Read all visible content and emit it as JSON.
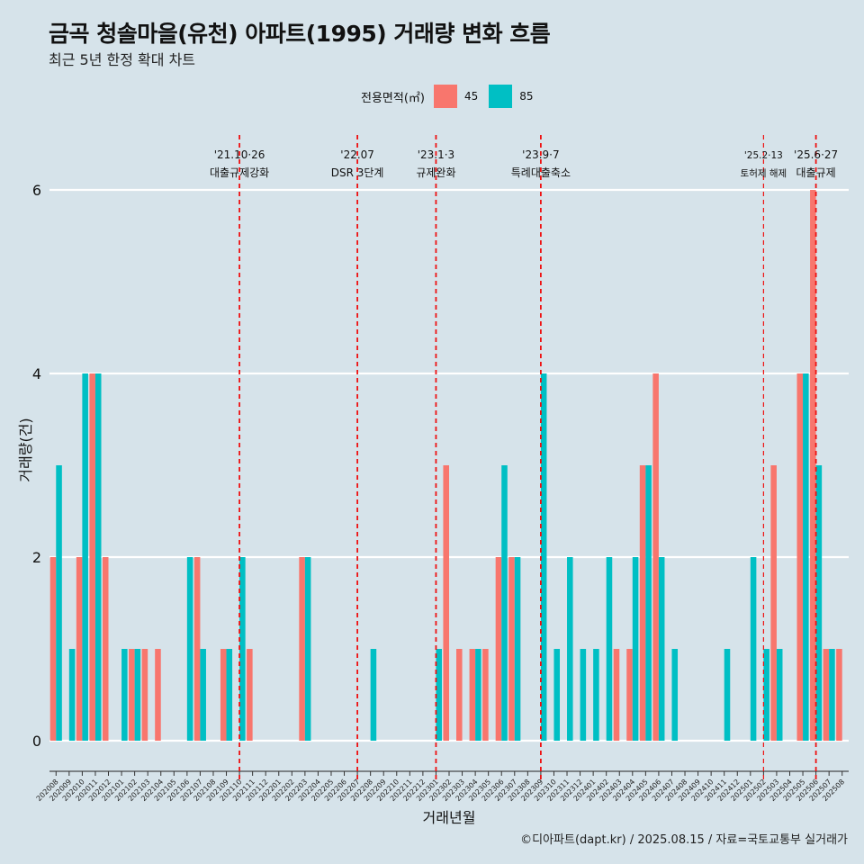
{
  "title": "금곡 청솔마을(유천) 아파트(1995) 거래량 변화 흐름",
  "subtitle": "최근 5년 한정 확대 차트",
  "legend": {
    "title": "전용면적(㎡)",
    "items": [
      {
        "label": "45",
        "color": "#f8766d"
      },
      {
        "label": "85",
        "color": "#00bfc4"
      }
    ]
  },
  "caption": "©디아파트(dapt.kr) / 2025.08.15 / 자료=국토교통부 실거래가",
  "chart_data": {
    "type": "bar",
    "xlabel": "거래년월",
    "ylabel": "거래량(건)",
    "ylim": [
      -0.3,
      6.1
    ],
    "yticks": [
      0,
      2,
      4,
      6
    ],
    "grid": true,
    "legend_position": "top",
    "categories": [
      "202008",
      "202009",
      "202010",
      "202011",
      "202012",
      "202101",
      "202102",
      "202103",
      "202104",
      "202105",
      "202106",
      "202107",
      "202108",
      "202109",
      "202110",
      "202111",
      "202112",
      "202201",
      "202202",
      "202203",
      "202204",
      "202205",
      "202206",
      "202207",
      "202208",
      "202209",
      "202210",
      "202211",
      "202212",
      "202301",
      "202302",
      "202303",
      "202304",
      "202305",
      "202306",
      "202307",
      "202308",
      "202309",
      "202310",
      "202311",
      "202312",
      "202401",
      "202402",
      "202403",
      "202404",
      "202405",
      "202406",
      "202407",
      "202408",
      "202409",
      "202410",
      "202411",
      "202412",
      "202501",
      "202502",
      "202503",
      "202504",
      "202505",
      "202506",
      "202507",
      "202508"
    ],
    "series": [
      {
        "name": "45",
        "color": "#f8766d",
        "values": [
          2,
          0,
          2,
          4,
          2,
          0,
          1,
          1,
          1,
          0,
          0,
          2,
          0,
          1,
          0,
          1,
          0,
          0,
          0,
          2,
          0,
          0,
          0,
          0,
          0,
          0,
          0,
          0,
          0,
          0,
          3,
          1,
          1,
          1,
          2,
          2,
          0,
          0,
          0,
          0,
          0,
          0,
          0,
          1,
          1,
          3,
          4,
          0,
          0,
          0,
          0,
          0,
          0,
          0,
          0,
          3,
          0,
          4,
          6,
          1,
          1
        ]
      },
      {
        "name": "85",
        "color": "#00bfc4",
        "values": [
          3,
          1,
          4,
          4,
          0,
          1,
          1,
          0,
          0,
          0,
          2,
          1,
          0,
          1,
          2,
          0,
          0,
          0,
          0,
          2,
          0,
          0,
          0,
          0,
          1,
          0,
          0,
          0,
          0,
          1,
          0,
          0,
          1,
          0,
          3,
          2,
          0,
          4,
          1,
          2,
          1,
          1,
          2,
          0,
          2,
          3,
          2,
          1,
          0,
          0,
          0,
          1,
          0,
          2,
          1,
          1,
          0,
          4,
          3,
          1,
          0
        ]
      }
    ],
    "annotations": [
      {
        "category": "202110",
        "date": "'21.10·26",
        "text": "대출규제강화",
        "size": "normal"
      },
      {
        "category": "202207",
        "date": "'22.07",
        "text": "DSR 3단계",
        "size": "normal"
      },
      {
        "category": "202301",
        "date": "'23.1·3",
        "text": "규제완화",
        "size": "normal"
      },
      {
        "category": "202309",
        "date": "'23.9·7",
        "text": "특례대출축소",
        "size": "normal"
      },
      {
        "category": "202502",
        "date": "'25.2·13",
        "text": "토허제 해제",
        "size": "small"
      },
      {
        "category": "202506",
        "date": "'25.6·27",
        "text": "대출규제",
        "size": "normal"
      }
    ]
  }
}
